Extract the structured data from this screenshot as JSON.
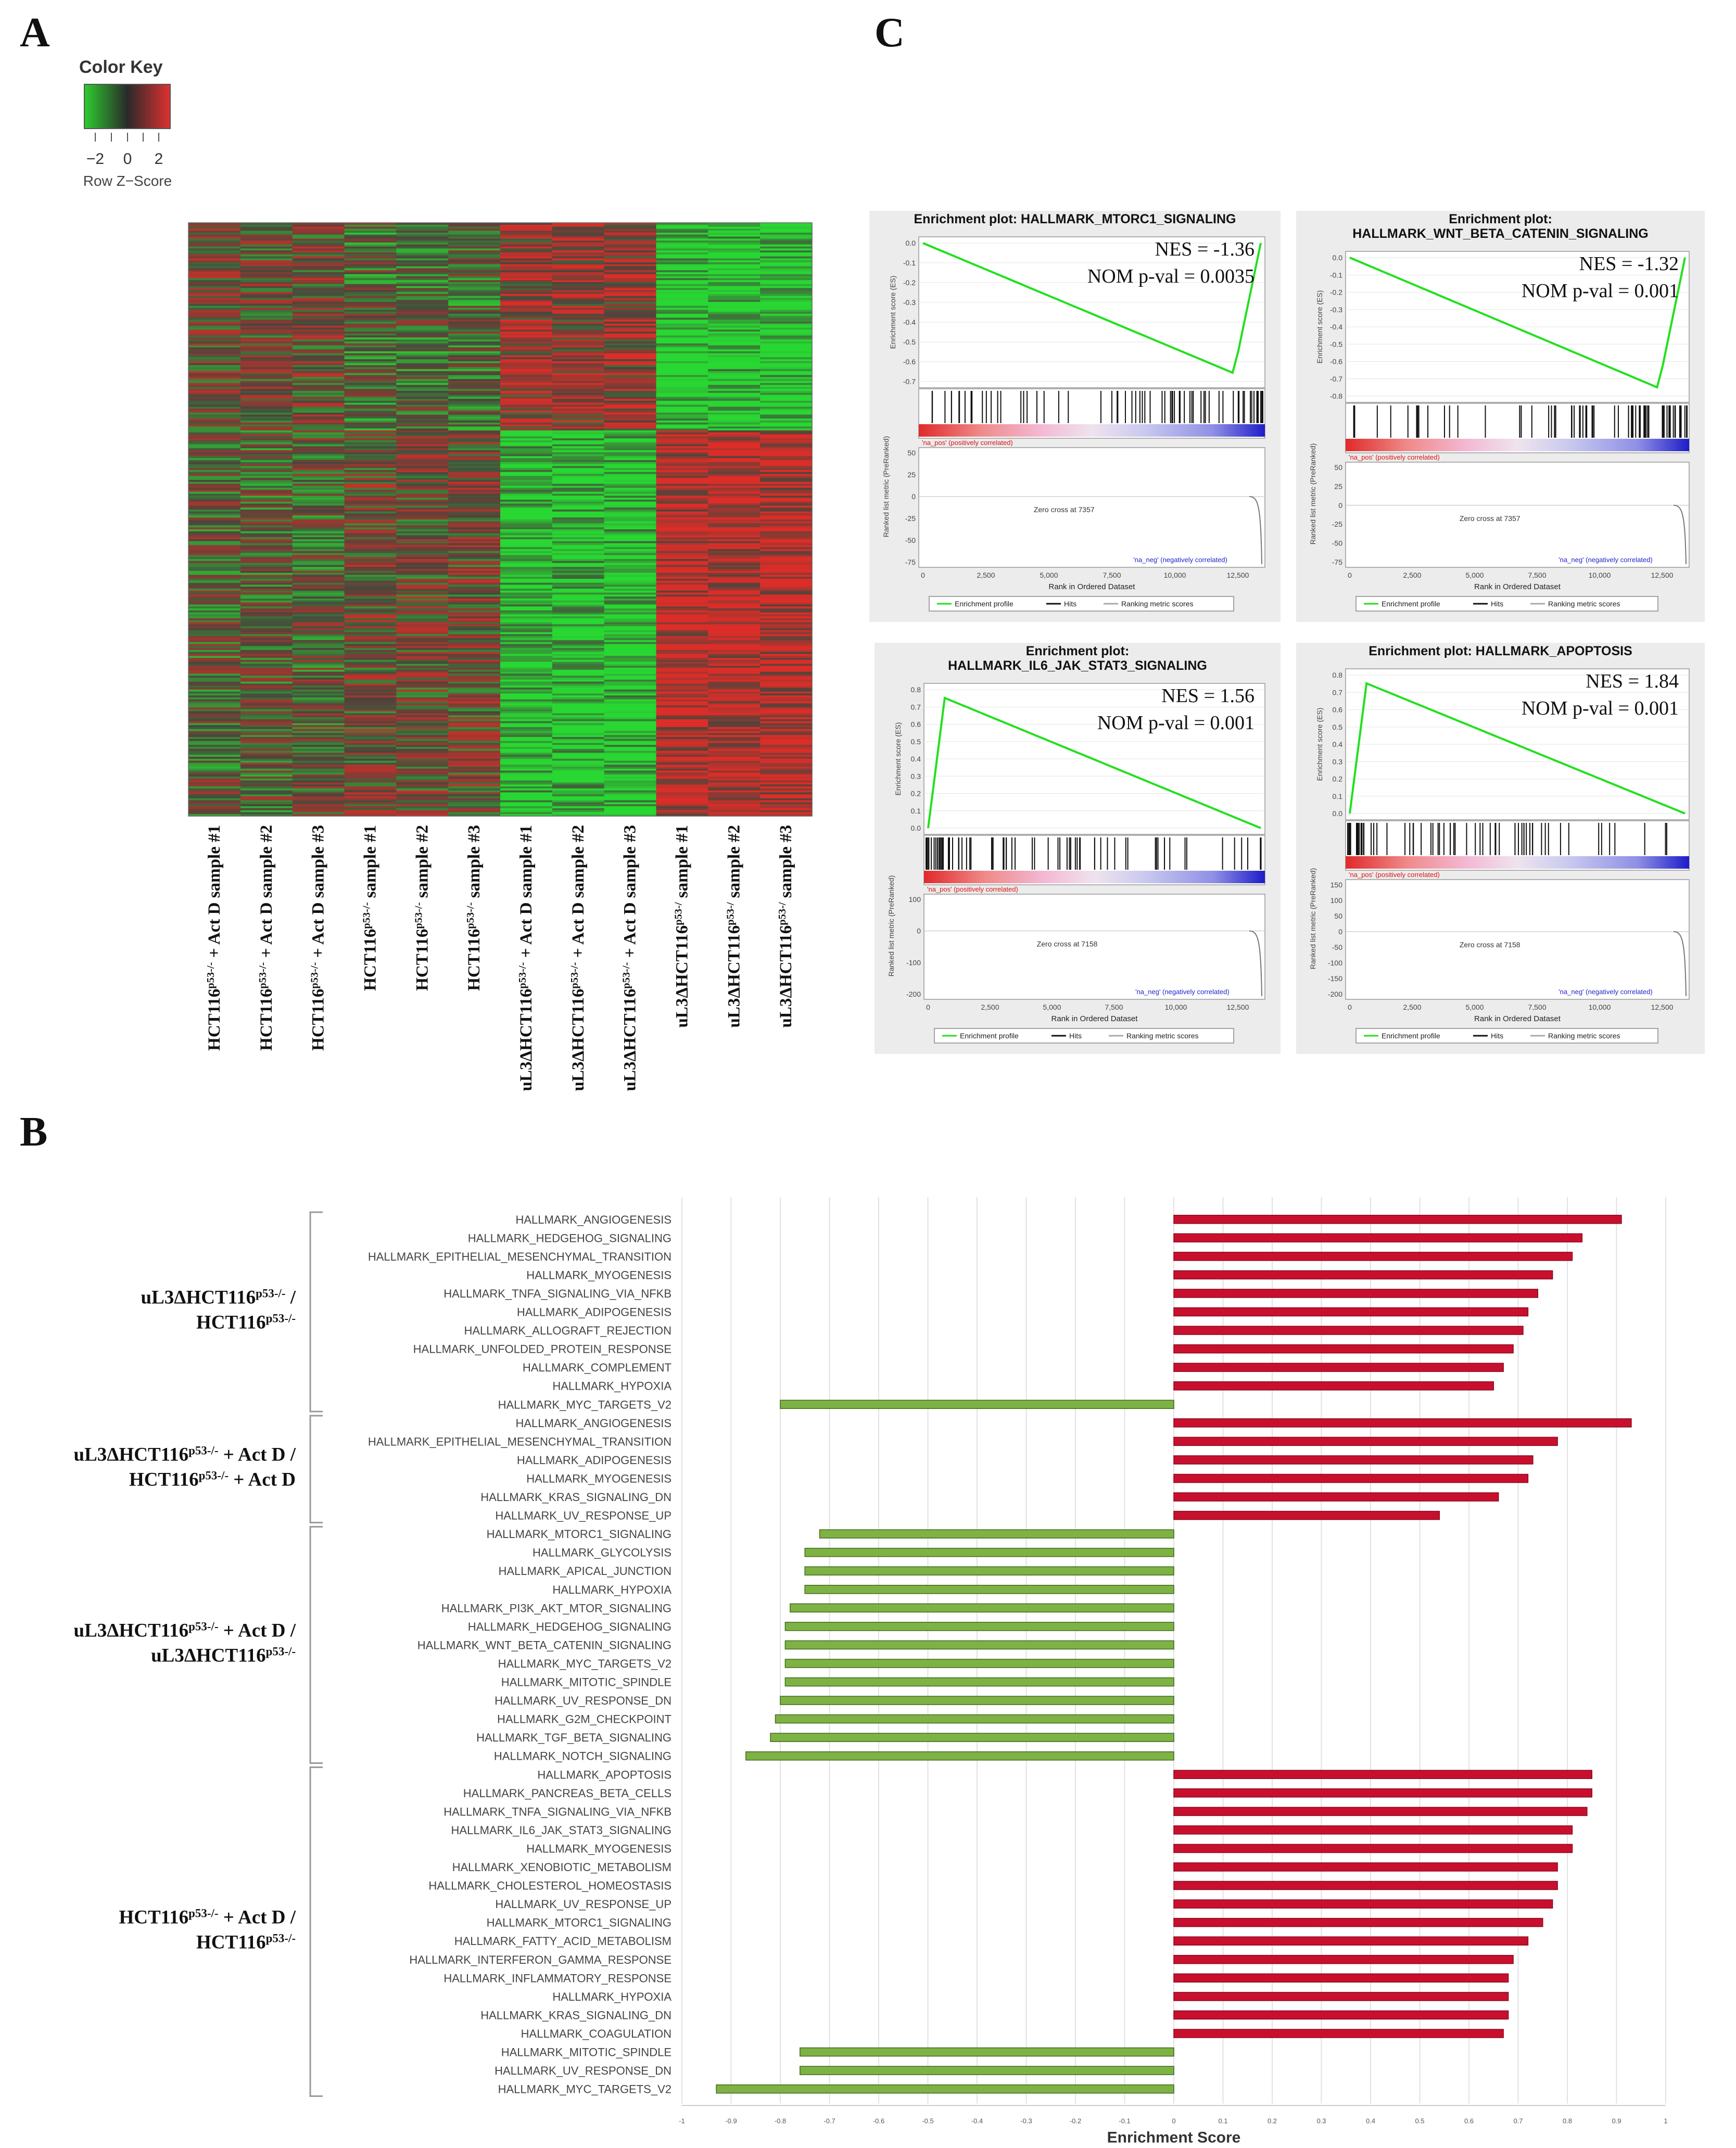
{
  "panels": {
    "a": "A",
    "b": "B",
    "c": "C"
  },
  "colors": {
    "up": "#c8102e",
    "down": "#7fb244",
    "down_edge": "#3f6b1c",
    "es_line": "#22e01e",
    "heat_red": "#c0392b",
    "heat_green": "#3fbf3f"
  },
  "heatmap": {
    "key_title": "Color Key",
    "key_ticks": [
      "−2",
      "0",
      "2"
    ],
    "key_label": "Row Z−Score",
    "sample_labels": [
      {
        "base": "HCT116",
        "sup": "p53-/-",
        "rest": " + Act D sample #1"
      },
      {
        "base": "HCT116",
        "sup": "p53-/-",
        "rest": " + Act D sample #2"
      },
      {
        "base": "HCT116",
        "sup": "p53-/-",
        "rest": " + Act D sample #3"
      },
      {
        "base": "HCT116",
        "sup": "p53-/-",
        "rest": " sample #1"
      },
      {
        "base": "HCT116",
        "sup": "p53-/-",
        "rest": " sample #2"
      },
      {
        "base": "HCT116",
        "sup": "p53-/-",
        "rest": " sample #3"
      },
      {
        "base": "uL3ΔHCT116",
        "sup": "p53-/-",
        "rest": " + Act D sample #1"
      },
      {
        "base": "uL3ΔHCT116",
        "sup": "p53-/-",
        "rest": " + Act D sample #2"
      },
      {
        "base": "uL3ΔHCT116",
        "sup": "p53-/-",
        "rest": " + Act D sample #3"
      },
      {
        "base": "uL3ΔHCT116",
        "sup": "p53-/",
        "rest": " sample #1"
      },
      {
        "base": "uL3ΔHCT116",
        "sup": "p53-/",
        "rest": " sample #2"
      },
      {
        "base": "uL3ΔHCT116",
        "sup": "p53-/",
        "rest": " sample #3"
      }
    ]
  },
  "gsea_common": {
    "es_axis_label": "Enrichment score (ES)",
    "rank_axis_label": "Ranked list metric (PreRanked)",
    "x_axis_label": "Rank in Ordered Dataset",
    "x_ticks": [
      "0",
      "2,500",
      "5,000",
      "7,500",
      "10,000",
      "12,500"
    ],
    "pos_label": "'na_pos' (positively correlated)",
    "neg_label": "'na_neg' (negatively correlated)",
    "legend": [
      "Enrichment profile",
      "Hits",
      "Ranking metric scores"
    ]
  },
  "gsea_plots": [
    {
      "title_lines": [
        "Enrichment plot: HALLMARK_MTORC1_SIGNALING"
      ],
      "nes": "NES = -1.36",
      "pval": "NOM p-val = 0.0035",
      "es_ticks": [
        "0.0",
        "-0.1",
        "-0.2",
        "-0.3",
        "-0.4",
        "-0.5",
        "-0.6",
        "-0.7"
      ],
      "rank_ticks": [
        "50",
        "25",
        "0",
        "-25",
        "-50",
        "-75"
      ],
      "zero_cross": "Zero cross at 7357",
      "direction": "neg"
    },
    {
      "title_lines": [
        "Enrichment plot:",
        "HALLMARK_WNT_BETA_CATENIN_SIGNALING"
      ],
      "nes": "NES = -1.32",
      "pval": "NOM p-val = 0.001",
      "es_ticks": [
        "0.0",
        "-0.1",
        "-0.2",
        "-0.3",
        "-0.4",
        "-0.5",
        "-0.6",
        "-0.7",
        "-0.8"
      ],
      "rank_ticks": [
        "50",
        "25",
        "0",
        "-25",
        "-50",
        "-75"
      ],
      "zero_cross": "Zero cross at 7357",
      "direction": "neg"
    },
    {
      "title_lines": [
        "Enrichment plot:",
        "HALLMARK_IL6_JAK_STAT3_SIGNALING"
      ],
      "nes": "NES = 1.56",
      "pval": "NOM p-val = 0.001",
      "es_ticks": [
        "0.8",
        "0.7",
        "0.6",
        "0.5",
        "0.4",
        "0.3",
        "0.2",
        "0.1",
        "0.0"
      ],
      "rank_ticks": [
        "100",
        "0",
        "-100",
        "-200"
      ],
      "zero_cross": "Zero cross at 7158",
      "direction": "pos"
    },
    {
      "title_lines": [
        "Enrichment plot: HALLMARK_APOPTOSIS"
      ],
      "nes": "NES = 1.84",
      "pval": "NOM p-val = 0.001",
      "es_ticks": [
        "0.8",
        "0.7",
        "0.6",
        "0.5",
        "0.4",
        "0.3",
        "0.2",
        "0.1",
        "0.0"
      ],
      "rank_ticks": [
        "150",
        "100",
        "50",
        "0",
        "-50",
        "-100",
        "-150",
        "-200"
      ],
      "zero_cross": "Zero cross at 7158",
      "direction": "pos"
    }
  ],
  "chart_data": {
    "type": "bar",
    "orientation": "horizontal",
    "xlabel": "Enrichment Score",
    "xlim": [
      -1,
      1
    ],
    "x_ticks": [
      -1,
      -0.9,
      -0.8,
      -0.7,
      -0.6,
      -0.5,
      -0.4,
      -0.3,
      -0.2,
      -0.1,
      0,
      0.1,
      0.2,
      0.3,
      0.4,
      0.5,
      0.6,
      0.7,
      0.8,
      0.9,
      1
    ],
    "groups": [
      {
        "label_lines": [
          [
            "uL3ΔHCT116",
            "p53-/-",
            " /"
          ],
          [
            "HCT116",
            "p53-/-",
            ""
          ]
        ],
        "items": [
          [
            "HALLMARK_ANGIOGENESIS",
            0.91
          ],
          [
            "HALLMARK_HEDGEHOG_SIGNALING",
            0.83
          ],
          [
            "HALLMARK_EPITHELIAL_MESENCHYMAL_TRANSITION",
            0.81
          ],
          [
            "HALLMARK_MYOGENESIS",
            0.77
          ],
          [
            "HALLMARK_TNFA_SIGNALING_VIA_NFKB",
            0.74
          ],
          [
            "HALLMARK_ADIPOGENESIS",
            0.72
          ],
          [
            "HALLMARK_ALLOGRAFT_REJECTION",
            0.71
          ],
          [
            "HALLMARK_UNFOLDED_PROTEIN_RESPONSE",
            0.69
          ],
          [
            "HALLMARK_COMPLEMENT",
            0.67
          ],
          [
            "HALLMARK_HYPOXIA",
            0.65
          ],
          [
            "HALLMARK_MYC_TARGETS_V2",
            -0.8
          ]
        ]
      },
      {
        "label_lines": [
          [
            "uL3ΔHCT116",
            "p53-/-",
            " + Act D /"
          ],
          [
            "HCT116",
            "p53-/-",
            " + Act D"
          ]
        ],
        "items": [
          [
            "HALLMARK_ANGIOGENESIS",
            0.93
          ],
          [
            "HALLMARK_EPITHELIAL_MESENCHYMAL_TRANSITION",
            0.78
          ],
          [
            "HALLMARK_ADIPOGENESIS",
            0.73
          ],
          [
            "HALLMARK_MYOGENESIS",
            0.72
          ],
          [
            "HALLMARK_KRAS_SIGNALING_DN",
            0.66
          ],
          [
            "HALLMARK_UV_RESPONSE_UP",
            0.54
          ]
        ]
      },
      {
        "label_lines": [
          [
            "uL3ΔHCT116",
            "p53-/-",
            " + Act D /"
          ],
          [
            "uL3ΔHCT116",
            "p53-/-",
            ""
          ]
        ],
        "items": [
          [
            "HALLMARK_MTORC1_SIGNALING",
            -0.72
          ],
          [
            "HALLMARK_GLYCOLYSIS",
            -0.75
          ],
          [
            "HALLMARK_APICAL_JUNCTION",
            -0.75
          ],
          [
            "HALLMARK_HYPOXIA",
            -0.75
          ],
          [
            "HALLMARK_PI3K_AKT_MTOR_SIGNALING",
            -0.78
          ],
          [
            "HALLMARK_HEDGEHOG_SIGNALING",
            -0.79
          ],
          [
            "HALLMARK_WNT_BETA_CATENIN_SIGNALING",
            -0.79
          ],
          [
            "HALLMARK_MYC_TARGETS_V2",
            -0.79
          ],
          [
            "HALLMARK_MITOTIC_SPINDLE",
            -0.79
          ],
          [
            "HALLMARK_UV_RESPONSE_DN",
            -0.8
          ],
          [
            "HALLMARK_G2M_CHECKPOINT",
            -0.81
          ],
          [
            "HALLMARK_TGF_BETA_SIGNALING",
            -0.82
          ],
          [
            "HALLMARK_NOTCH_SIGNALING",
            -0.87
          ]
        ]
      },
      {
        "label_lines": [
          [
            "HCT116",
            "p53-/-",
            " + Act D /"
          ],
          [
            "HCT116",
            "p53-/-",
            ""
          ]
        ],
        "items": [
          [
            "HALLMARK_APOPTOSIS",
            0.85
          ],
          [
            "HALLMARK_PANCREAS_BETA_CELLS",
            0.85
          ],
          [
            "HALLMARK_TNFA_SIGNALING_VIA_NFKB",
            0.84
          ],
          [
            "HALLMARK_IL6_JAK_STAT3_SIGNALING",
            0.81
          ],
          [
            "HALLMARK_MYOGENESIS",
            0.81
          ],
          [
            "HALLMARK_XENOBIOTIC_METABOLISM",
            0.78
          ],
          [
            "HALLMARK_CHOLESTEROL_HOMEOSTASIS",
            0.78
          ],
          [
            "HALLMARK_UV_RESPONSE_UP",
            0.77
          ],
          [
            "HALLMARK_MTORC1_SIGNALING",
            0.75
          ],
          [
            "HALLMARK_FATTY_ACID_METABOLISM",
            0.72
          ],
          [
            "HALLMARK_INTERFERON_GAMMA_RESPONSE",
            0.69
          ],
          [
            "HALLMARK_INFLAMMATORY_RESPONSE",
            0.68
          ],
          [
            "HALLMARK_HYPOXIA",
            0.68
          ],
          [
            "HALLMARK_KRAS_SIGNALING_DN",
            0.68
          ],
          [
            "HALLMARK_COAGULATION",
            0.67
          ],
          [
            "HALLMARK_MITOTIC_SPINDLE",
            -0.76
          ],
          [
            "HALLMARK_UV_RESPONSE_DN",
            -0.76
          ],
          [
            "HALLMARK_MYC_TARGETS_V2",
            -0.93
          ]
        ]
      }
    ]
  }
}
